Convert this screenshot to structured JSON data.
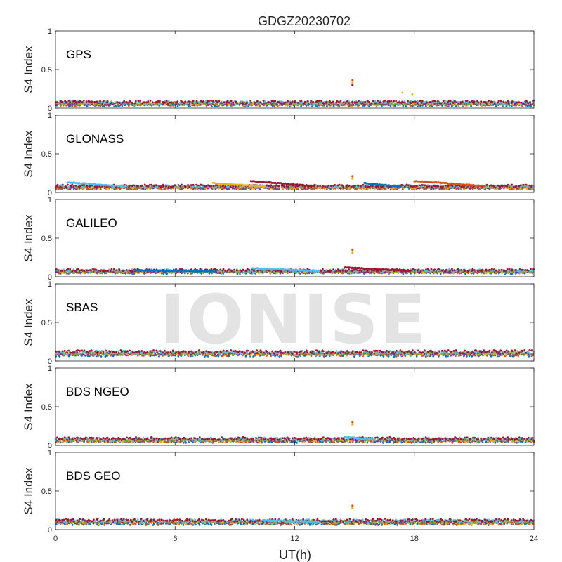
{
  "watermark": "IONISE",
  "chart_data": {
    "type": "scatter",
    "title": "GDGZ20230702",
    "xlabel": "UT(h)",
    "ylabel": "S4 Index",
    "xlim": [
      0,
      24
    ],
    "ylim": [
      0,
      1
    ],
    "x_ticks": [
      "0",
      "6",
      "12",
      "18",
      "24"
    ],
    "y_ticks": [
      "0",
      "0.5",
      "1"
    ],
    "grid": false,
    "series_colors": [
      "#0072BD",
      "#D95319",
      "#EDB120",
      "#7E2F8E",
      "#77AC30",
      "#4DBEEE",
      "#A2142F"
    ],
    "panels": [
      {
        "name": "GPS",
        "baseline": 0.06,
        "spread": 0.035,
        "arcs": [],
        "spike": {
          "x": 14.9,
          "values": [
            0.36,
            0.33,
            0.3
          ]
        },
        "extra_points": [
          {
            "x": 17.4,
            "y": 0.2
          },
          {
            "x": 17.9,
            "y": 0.18
          }
        ]
      },
      {
        "name": "GLONASS",
        "baseline": 0.07,
        "spread": 0.03,
        "arcs": [
          {
            "x0": 0.6,
            "x1": 3.5,
            "y": 0.13
          },
          {
            "x0": 9.8,
            "x1": 13.0,
            "y": 0.15
          },
          {
            "x0": 15.5,
            "x1": 17.3,
            "y": 0.12
          },
          {
            "x0": 18.0,
            "x1": 21.5,
            "y": 0.15
          },
          {
            "x0": 7.9,
            "x1": 10.5,
            "y": 0.12
          }
        ],
        "spike": {
          "x": 14.9,
          "values": [
            0.21,
            0.18
          ]
        },
        "extra_points": []
      },
      {
        "name": "GALILEO",
        "baseline": 0.07,
        "spread": 0.03,
        "arcs": [
          {
            "x0": 9.9,
            "x1": 13.2,
            "y": 0.11
          },
          {
            "x0": 14.5,
            "x1": 17.8,
            "y": 0.12
          },
          {
            "x0": 4.0,
            "x1": 8.0,
            "y": 0.08
          }
        ],
        "spike": {
          "x": 14.9,
          "values": [
            0.35,
            0.31
          ]
        },
        "extra_points": []
      },
      {
        "name": "SBAS",
        "baseline": 0.1,
        "spread": 0.04,
        "arcs": [],
        "spike": null,
        "extra_points": []
      },
      {
        "name": "BDS NGEO",
        "baseline": 0.07,
        "spread": 0.035,
        "arcs": [
          {
            "x0": 14.5,
            "x1": 16.0,
            "y": 0.11
          }
        ],
        "spike": {
          "x": 14.9,
          "values": [
            0.3,
            0.27
          ]
        },
        "extra_points": []
      },
      {
        "name": "BDS GEO",
        "baseline": 0.1,
        "spread": 0.04,
        "arcs": [
          {
            "x0": 10.4,
            "x1": 13.2,
            "y": 0.12
          }
        ],
        "spike": {
          "x": 14.9,
          "values": [
            0.31,
            0.28
          ]
        },
        "extra_points": []
      }
    ]
  }
}
